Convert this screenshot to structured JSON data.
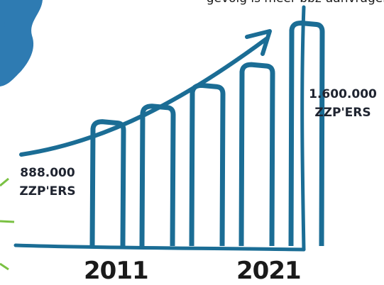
{
  "caption": "gevolg is meer bbz-aanvragen",
  "colors": {
    "ink": "#1b6d95",
    "map": "#2e7bb2",
    "accent": "#7ac143",
    "text": "#1f2430"
  },
  "chart_data": {
    "type": "bar",
    "categories": [
      "2011",
      "",
      "",
      "",
      "2021"
    ],
    "values": [
      888000,
      1000000,
      1150000,
      1300000,
      1600000
    ],
    "value_labels": [
      {
        "category_index": 0,
        "value": "888.000",
        "unit": "ZZP'ERS"
      },
      {
        "category_index": 4,
        "value": "1.600.000",
        "unit": "ZZP'ERS"
      }
    ],
    "trend_arrow": true,
    "title": "",
    "xlabel": "",
    "ylabel": "",
    "ylim": [
      0,
      1700000
    ]
  }
}
